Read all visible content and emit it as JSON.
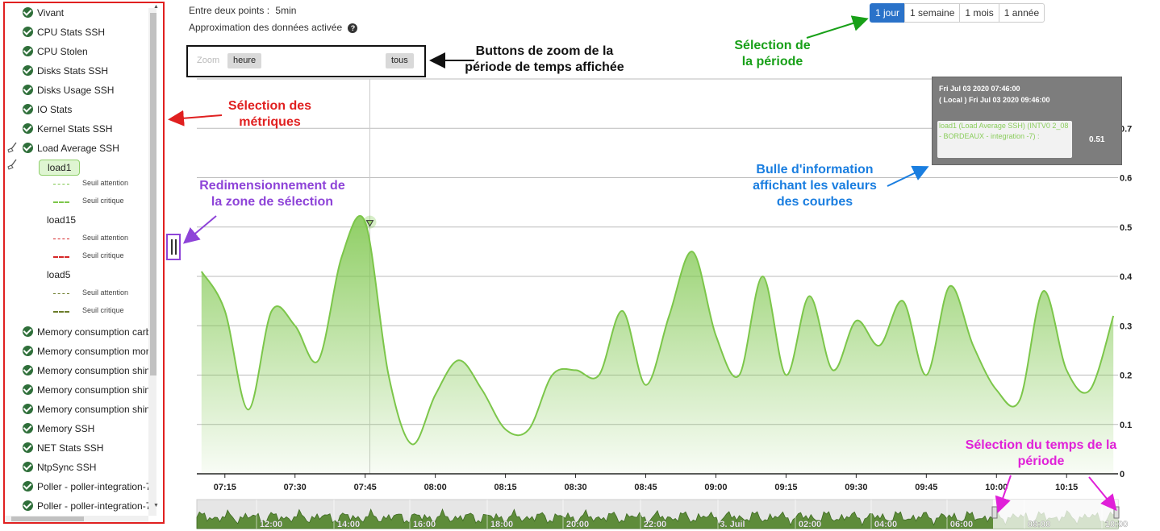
{
  "sidebar": {
    "metrics": [
      {
        "label": "Vivant"
      },
      {
        "label": "CPU Stats SSH"
      },
      {
        "label": "CPU Stolen"
      },
      {
        "label": "Disks Stats SSH"
      },
      {
        "label": "Disks Usage SSH"
      },
      {
        "label": "IO Stats"
      },
      {
        "label": "Kernel Stats SSH"
      },
      {
        "label": "Load Average SSH"
      }
    ],
    "load_children": [
      {
        "label": "load1",
        "warning_label": "Seuil attention",
        "critical_label": "Seuil critique",
        "color": "#7cc64a"
      },
      {
        "label": "load15",
        "warning_label": "Seuil attention",
        "critical_label": "Seuil critique",
        "color": "#d62728"
      },
      {
        "label": "load5",
        "warning_label": "Seuil attention",
        "critical_label": "Seuil critique",
        "color": "#6b7c2a"
      }
    ],
    "metrics_after": [
      {
        "label": "Memory consumption carb"
      },
      {
        "label": "Memory consumption mon"
      },
      {
        "label": "Memory consumption shinl"
      },
      {
        "label": "Memory consumption shinl"
      },
      {
        "label": "Memory consumption shinl"
      },
      {
        "label": "Memory SSH"
      },
      {
        "label": "NET Stats SSH"
      },
      {
        "label": "NtpSync SSH"
      },
      {
        "label": "Poller - poller-integration-7"
      },
      {
        "label": "Poller - poller-integration-7"
      }
    ]
  },
  "header": {
    "interval_label": "Entre deux points :",
    "interval_value": "5min",
    "approx_label": "Approximation des données activée",
    "help_icon": "?"
  },
  "zoom": {
    "label": "Zoom",
    "hour": "heure",
    "all": "tous"
  },
  "periods": [
    "1 jour",
    "1 semaine",
    "1 mois",
    "1 année"
  ],
  "annotations": {
    "zoom_buttons": "Buttons de zoom de la période de temps affichée",
    "period_selection": "Sélection de la période",
    "metrics_selection": "Sélection des métriques",
    "resize_zone": "Redimensionnement de la zone de sélection",
    "tooltip_info": "Bulle d'information affichant les valeurs des courbes",
    "time_selection": "Sélection du temps de la période"
  },
  "tooltip": {
    "line1": "Fri Jul 03 2020 07:46:00",
    "line2": "( Local ) Fri Jul 03 2020 09:46:00",
    "series_text": "load1 (Load Average SSH) (INTV0 2_08 - BORDEAUX - integration -7) :",
    "series_value": "0.51"
  },
  "chart_data": {
    "type": "area",
    "series": [
      {
        "name": "load1",
        "color": "#7cc64a"
      }
    ],
    "x": [
      "07:10",
      "07:15",
      "07:20",
      "07:25",
      "07:30",
      "07:35",
      "07:40",
      "07:45",
      "07:50",
      "07:55",
      "08:00",
      "08:05",
      "08:10",
      "08:15",
      "08:20",
      "08:25",
      "08:30",
      "08:35",
      "08:40",
      "08:45",
      "08:50",
      "08:55",
      "09:00",
      "09:05",
      "09:10",
      "09:15",
      "09:20",
      "09:25",
      "09:30",
      "09:35",
      "09:40",
      "09:45",
      "09:50",
      "09:55",
      "10:00",
      "10:05",
      "10:10",
      "10:15",
      "10:20",
      "10:25"
    ],
    "values": [
      0.41,
      0.33,
      0.13,
      0.33,
      0.3,
      0.23,
      0.44,
      0.51,
      0.2,
      0.06,
      0.16,
      0.23,
      0.17,
      0.09,
      0.09,
      0.2,
      0.21,
      0.2,
      0.33,
      0.18,
      0.32,
      0.45,
      0.28,
      0.2,
      0.4,
      0.2,
      0.36,
      0.21,
      0.31,
      0.26,
      0.35,
      0.2,
      0.38,
      0.26,
      0.17,
      0.15,
      0.37,
      0.21,
      0.17,
      0.32
    ],
    "x_ticks": [
      "07:15",
      "07:30",
      "07:45",
      "08:00",
      "08:15",
      "08:30",
      "08:45",
      "09:00",
      "09:15",
      "09:30",
      "09:45",
      "10:00",
      "10:15"
    ],
    "y_ticks": [
      "0",
      "0.1",
      "0.2",
      "0.3",
      "0.4",
      "0.5",
      "0.6",
      "0.7"
    ],
    "ylim": [
      0,
      0.8
    ],
    "grid": true,
    "navigator_ticks": [
      "12:00",
      "14:00",
      "16:00",
      "18:00",
      "20:00",
      "22:00",
      "3. Juil",
      "02:00",
      "04:00",
      "06:00",
      "08:00",
      "10:00"
    ]
  },
  "colors": {
    "accent": "#2a72c9",
    "area": "#7cc64a",
    "annotation_red": "#e02020",
    "annotation_green": "#18a018",
    "annotation_purple": "#8e44d8",
    "annotation_blue": "#1a7ee0",
    "annotation_magenta": "#e020d8"
  }
}
